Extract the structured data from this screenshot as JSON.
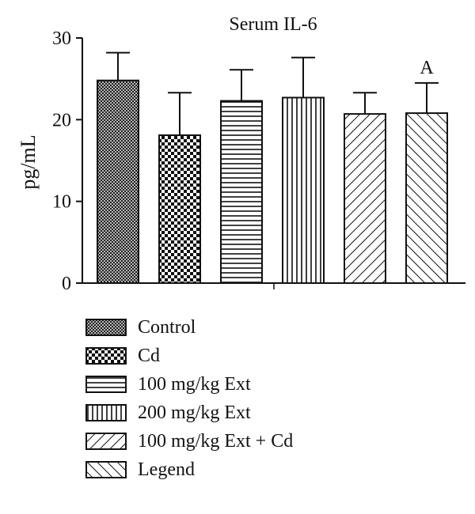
{
  "chart_data": {
    "type": "bar",
    "title": "Serum IL-6",
    "xlabel": "",
    "ylabel": "pg/mL",
    "ylim": [
      0,
      30
    ],
    "yticks": [
      0,
      10,
      20,
      30
    ],
    "grid": false,
    "legend_position": "bottom",
    "categories": [
      "Control",
      "Cd",
      "100 mg/kg Ext",
      "200 mg/kg Ext",
      "100 mg/kg Ext + Cd",
      "Legend"
    ],
    "values": [
      24.8,
      18.1,
      22.3,
      22.7,
      20.7,
      20.8
    ],
    "errors": [
      3.4,
      5.2,
      3.8,
      4.9,
      2.6,
      3.7
    ],
    "patterns": [
      "crosshatch-fine",
      "checker",
      "horizontal",
      "vertical",
      "diagonal-right",
      "diagonal-left"
    ],
    "annotations": [
      {
        "category": "Legend",
        "text": "A"
      }
    ]
  }
}
